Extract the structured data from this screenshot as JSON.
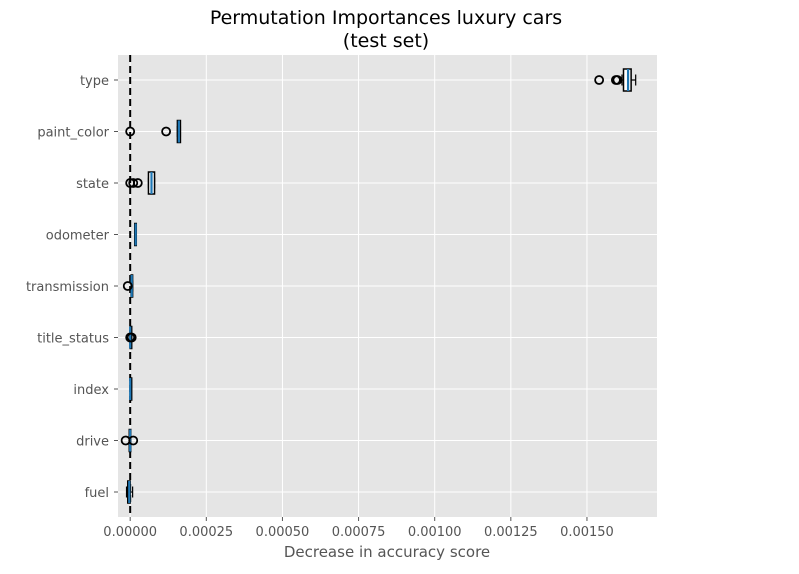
{
  "chart_data": {
    "type": "boxplot",
    "orientation": "horizontal",
    "title": "Permutation Importances luxury cars",
    "subtitle": "(test set)",
    "xlabel": "Decrease in accuracy score",
    "ylabel": "",
    "xlim": [
      -4e-05,
      0.00173
    ],
    "xticks": [
      0,
      0.00025,
      0.0005,
      0.00075,
      0.001,
      0.00125,
      0.0015
    ],
    "xtick_labels": [
      "0.00000",
      "0.00025",
      "0.00050",
      "0.00075",
      "0.00100",
      "0.00125",
      "0.00150"
    ],
    "grid": true,
    "reference_line": {
      "x": 0,
      "style": "dashed",
      "color": "#000000"
    },
    "colors": {
      "background": "#e5e5e5",
      "grid": "#ffffff",
      "box_edge": "#1f77b4",
      "median": "#000000",
      "outlier": "#000000"
    },
    "categories": [
      "type",
      "paint_color",
      "state",
      "odometer",
      "transmission",
      "title_status",
      "index",
      "drive",
      "fuel"
    ],
    "boxes": [
      {
        "label": "type",
        "whisker_low": 0.001615,
        "q1": 0.00162,
        "median": 0.001635,
        "q3": 0.001645,
        "whisker_high": 0.00166,
        "outliers": [
          0.00154,
          0.001595,
          0.0016
        ]
      },
      {
        "label": "paint_color",
        "whisker_low": 0.000155,
        "q1": 0.000155,
        "median": 0.00016,
        "q3": 0.000165,
        "whisker_high": 0.000165,
        "outliers": [
          0.0,
          0.000118
        ]
      },
      {
        "label": "state",
        "whisker_low": 6e-05,
        "q1": 6e-05,
        "median": 7e-05,
        "q3": 8e-05,
        "whisker_high": 8e-05,
        "outliers": [
          0.0,
          1e-05,
          2.5e-05
        ]
      },
      {
        "label": "odometer",
        "whisker_low": 1.5e-05,
        "q1": 1.5e-05,
        "median": 1.8e-05,
        "q3": 2e-05,
        "whisker_high": 2e-05,
        "outliers": []
      },
      {
        "label": "transmission",
        "whisker_low": 3e-06,
        "q1": 3e-06,
        "median": 5e-06,
        "q3": 8e-06,
        "whisker_high": 8e-06,
        "outliers": [
          -8e-06
        ]
      },
      {
        "label": "title_status",
        "whisker_low": 0.0,
        "q1": 0.0,
        "median": 0.0,
        "q3": 5e-06,
        "whisker_high": 5e-06,
        "outliers": [
          0.0,
          5e-06
        ]
      },
      {
        "label": "index",
        "whisker_low": 0.0,
        "q1": 0.0,
        "median": 0.0,
        "q3": 0.0,
        "whisker_high": 0.0,
        "outliers": []
      },
      {
        "label": "drive",
        "whisker_low": -3e-06,
        "q1": -3e-06,
        "median": 0.0,
        "q3": 0.0,
        "whisker_high": 0.0,
        "outliers": [
          -1.5e-05,
          1e-05
        ]
      },
      {
        "label": "fuel",
        "whisker_low": -1.2e-05,
        "q1": -8e-06,
        "median": -3e-06,
        "q3": 0.0,
        "whisker_high": 8e-06,
        "outliers": []
      }
    ]
  }
}
